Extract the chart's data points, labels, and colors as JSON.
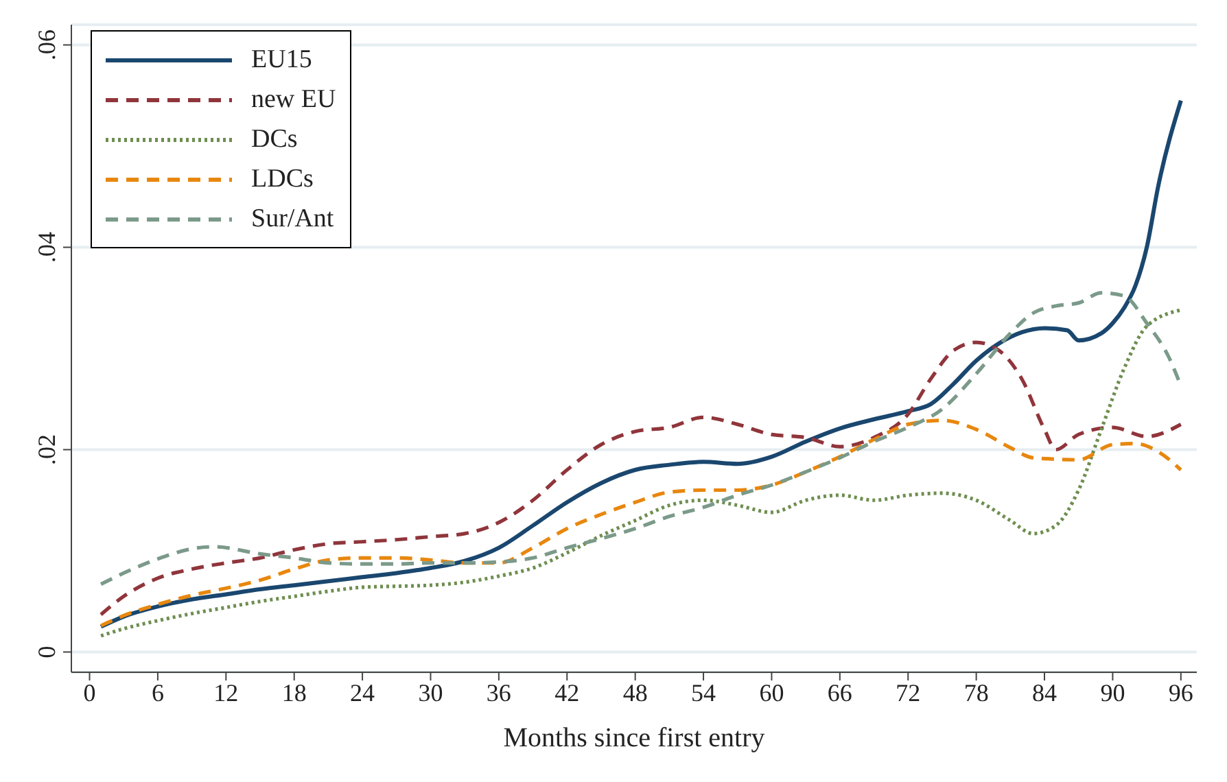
{
  "chart_data": {
    "type": "line",
    "xlabel": "Months since first entry",
    "xlim": [
      -1.6,
      97.4
    ],
    "xticks": [
      0,
      6,
      12,
      18,
      24,
      30,
      36,
      42,
      48,
      54,
      60,
      66,
      72,
      78,
      84,
      90,
      96
    ],
    "ylim": [
      -0.002,
      0.062
    ],
    "yticks": [
      {
        "value": 0,
        "label": "0"
      },
      {
        "value": 0.02,
        "label": ".02"
      },
      {
        "value": 0.04,
        "label": ".04"
      },
      {
        "value": 0.06,
        "label": ".06"
      }
    ],
    "grid": "y",
    "legend": "top left",
    "marker": "none",
    "series": [
      {
        "name": "EU15",
        "color": "#1a476f",
        "line_style": "solid",
        "x": [
          1,
          3,
          6,
          9,
          12,
          15,
          18,
          21,
          24,
          27,
          30,
          33,
          36,
          39,
          42,
          45,
          48,
          51,
          54,
          57,
          60,
          63,
          66,
          69,
          72,
          74,
          76,
          78,
          80,
          82,
          84,
          86,
          87,
          89,
          90,
          91,
          92,
          93,
          94,
          96
        ],
        "values": [
          0.0025,
          0.0035,
          0.0045,
          0.0052,
          0.0057,
          0.0062,
          0.0066,
          0.007,
          0.0074,
          0.0078,
          0.0083,
          0.009,
          0.0103,
          0.0125,
          0.0148,
          0.0167,
          0.018,
          0.0185,
          0.0188,
          0.0186,
          0.0193,
          0.0208,
          0.0221,
          0.023,
          0.0238,
          0.0245,
          0.0265,
          0.0288,
          0.0305,
          0.0316,
          0.032,
          0.0318,
          0.0308,
          0.0315,
          0.0325,
          0.034,
          0.0362,
          0.04,
          0.046,
          0.0545
        ]
      },
      {
        "name": "new EU",
        "color": "#90353b",
        "line_style": "dashed",
        "x": [
          1,
          3,
          6,
          9,
          12,
          15,
          18,
          21,
          24,
          27,
          30,
          33,
          36,
          39,
          42,
          45,
          48,
          51,
          54,
          57,
          60,
          63,
          66,
          69,
          72,
          74,
          76,
          78,
          80,
          82,
          84,
          85,
          87,
          90,
          93,
          96
        ],
        "values": [
          0.0037,
          0.0055,
          0.0073,
          0.0082,
          0.0088,
          0.0093,
          0.0101,
          0.0107,
          0.0109,
          0.0111,
          0.0114,
          0.0117,
          0.0128,
          0.015,
          0.018,
          0.0205,
          0.0218,
          0.0222,
          0.0232,
          0.0225,
          0.0215,
          0.0212,
          0.0203,
          0.0212,
          0.0235,
          0.027,
          0.0298,
          0.0306,
          0.0298,
          0.027,
          0.022,
          0.02,
          0.0215,
          0.0222,
          0.0213,
          0.0225
        ]
      },
      {
        "name": "DCs",
        "color": "#6e8e50",
        "line_style": "dotted",
        "x": [
          1,
          3,
          6,
          9,
          12,
          15,
          18,
          21,
          24,
          27,
          30,
          33,
          36,
          39,
          42,
          45,
          48,
          51,
          54,
          57,
          60,
          63,
          66,
          69,
          72,
          75,
          78,
          81,
          83,
          85,
          87,
          89,
          91,
          93,
          96
        ],
        "values": [
          0.0016,
          0.0023,
          0.0031,
          0.0038,
          0.0044,
          0.005,
          0.0055,
          0.006,
          0.0064,
          0.0065,
          0.0066,
          0.0069,
          0.0075,
          0.0083,
          0.0098,
          0.0115,
          0.013,
          0.0145,
          0.015,
          0.0145,
          0.0138,
          0.015,
          0.0155,
          0.015,
          0.0155,
          0.0157,
          0.015,
          0.013,
          0.0117,
          0.0125,
          0.016,
          0.022,
          0.028,
          0.0322,
          0.0338
        ]
      },
      {
        "name": "LDCs",
        "color": "#e8870e",
        "line_style": "dashed",
        "x": [
          1,
          3,
          6,
          9,
          12,
          15,
          18,
          21,
          24,
          27,
          30,
          33,
          36,
          39,
          42,
          45,
          48,
          51,
          54,
          57,
          60,
          63,
          66,
          69,
          72,
          75,
          78,
          81,
          83,
          87,
          90,
          92,
          94,
          96
        ],
        "values": [
          0.0026,
          0.0036,
          0.0047,
          0.0056,
          0.0063,
          0.0071,
          0.0082,
          0.0091,
          0.0093,
          0.0093,
          0.0091,
          0.0088,
          0.0088,
          0.0103,
          0.0122,
          0.0136,
          0.0148,
          0.0158,
          0.016,
          0.016,
          0.0165,
          0.0178,
          0.0193,
          0.021,
          0.0225,
          0.0229,
          0.022,
          0.0202,
          0.0192,
          0.019,
          0.0205,
          0.0206,
          0.0198,
          0.018
        ]
      },
      {
        "name": "Sur/Ant",
        "color": "#7b9a8a",
        "line_style": "dashed",
        "x": [
          1,
          3,
          6,
          9,
          11,
          15,
          18,
          21,
          24,
          27,
          30,
          33,
          36,
          39,
          42,
          45,
          48,
          51,
          54,
          57,
          60,
          63,
          66,
          69,
          72,
          75,
          78,
          81,
          83,
          85,
          87,
          89,
          91,
          93,
          95,
          96
        ],
        "values": [
          0.0067,
          0.0078,
          0.0092,
          0.0102,
          0.0104,
          0.0097,
          0.0093,
          0.0088,
          0.0087,
          0.0087,
          0.0088,
          0.0088,
          0.0089,
          0.0093,
          0.0103,
          0.0112,
          0.0122,
          0.0134,
          0.0143,
          0.0155,
          0.0165,
          0.0178,
          0.0192,
          0.0208,
          0.0222,
          0.024,
          0.0275,
          0.0315,
          0.0335,
          0.0342,
          0.0345,
          0.0355,
          0.0352,
          0.0325,
          0.029,
          0.0263
        ]
      }
    ]
  }
}
